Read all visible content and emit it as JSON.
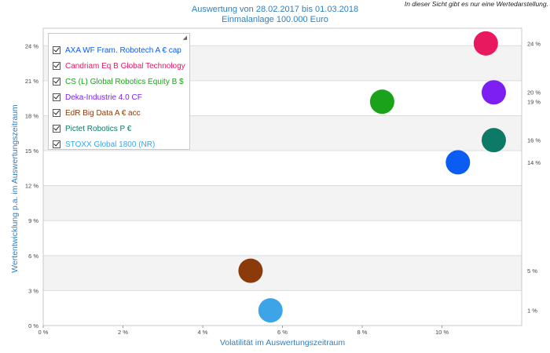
{
  "header": {
    "title_line1": "Auswertung von 28.02.2017 bis 01.03.2018",
    "title_line2": "Einmalanlage 100.000 Euro",
    "note": "In dieser Sicht gibt es nur eine Wertedarstellung."
  },
  "chart_data": {
    "type": "scatter",
    "title": "Auswertung von 28.02.2017 bis 01.03.2018",
    "subtitle": "Einmalanlage 100.000 Euro",
    "xlabel": "Volatilität im Auswertungszeitraum",
    "ylabel": "Wertentwicklung p.a. im Auswertungszeitraum",
    "xlim": [
      0,
      12
    ],
    "ylim": [
      0,
      25.5
    ],
    "x_ticks": [
      "0 %",
      "2 %",
      "4 %",
      "6 %",
      "8 %",
      "10 %"
    ],
    "y_ticks": [
      "0 %",
      "3 %",
      "6 %",
      "9 %",
      "12 %",
      "15 %",
      "18 %",
      "21 %",
      "24 %"
    ],
    "grid": "alternating horizontal bands",
    "legend_position": "top-left",
    "series": [
      {
        "name": "AXA WF Fram. Robotech A € cap",
        "color": "#0b5cf2",
        "x": 10.4,
        "y": 14.0,
        "right_label": "14 %"
      },
      {
        "name": "Candriam Eq B Global Technology",
        "color": "#e8195e",
        "x": 11.1,
        "y": 24.2,
        "right_label": "24 %"
      },
      {
        "name": "CS (L) Global Robotics Equity B $",
        "color": "#1aa31a",
        "x": 8.5,
        "y": 19.2,
        "right_label": "19 %"
      },
      {
        "name": "Deka-Industrie 4.0 CF",
        "color": "#7d1ef2",
        "x": 11.3,
        "y": 20.0,
        "right_label": "20 %"
      },
      {
        "name": "EdR Big Data A € acc",
        "color": "#8b3a0a",
        "x": 5.2,
        "y": 4.7,
        "right_label": "5 %"
      },
      {
        "name": "Pictet Robotics P €",
        "color": "#0d7a68",
        "x": 11.3,
        "y": 15.9,
        "right_label": "16 %"
      },
      {
        "name": "STOXX Global 1800 (NR)",
        "color": "#3da4e8",
        "x": 5.7,
        "y": 1.3,
        "right_label": "1 %"
      }
    ]
  }
}
